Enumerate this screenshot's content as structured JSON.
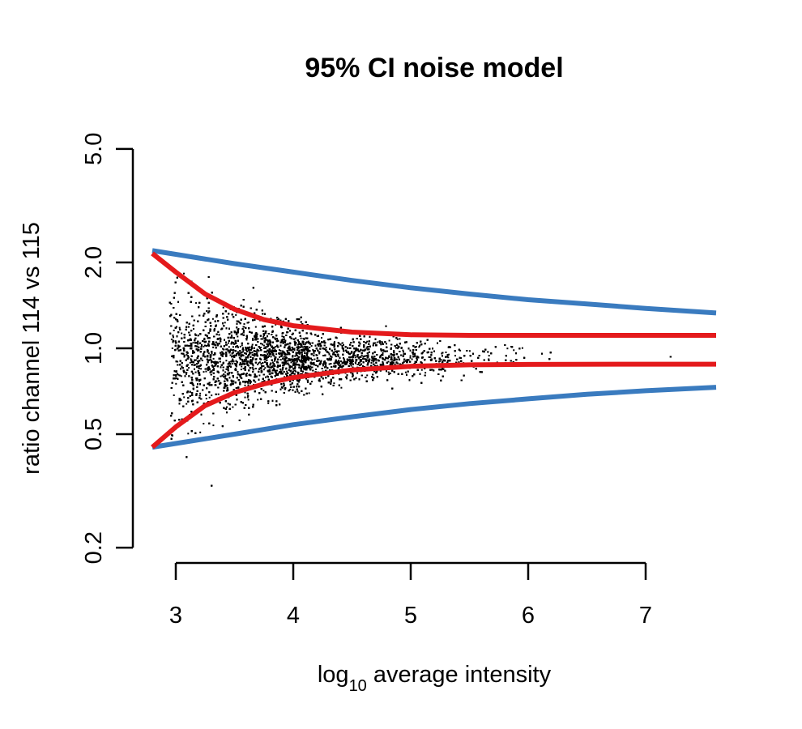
{
  "chart_data": {
    "type": "scatter",
    "title": "95% CI noise model",
    "xlabel": {
      "prefix": "log",
      "subscript": "10",
      "suffix": " average intensity"
    },
    "ylabel": "ratio channel 114 vs 115",
    "xlim": [
      2.8,
      7.6
    ],
    "ylim": [
      0.18,
      5.0
    ],
    "y_scale": "log",
    "x_ticks": [
      3,
      4,
      5,
      6,
      7
    ],
    "x_tick_labels": [
      "3",
      "4",
      "5",
      "6",
      "7"
    ],
    "y_ticks": [
      0.2,
      0.5,
      1.0,
      2.0,
      5.0
    ],
    "y_tick_labels": [
      "0.2",
      "0.5",
      "1.0",
      "2.0",
      "5.0"
    ],
    "grid": false,
    "legend": "none",
    "colors": {
      "points": "#000000",
      "outer_bounds": "#3a7bbf",
      "inner_bounds": "#e41a1c"
    },
    "points": {
      "n": 12000,
      "x_center": 4.0,
      "x_range": [
        2.95,
        7.55
      ],
      "median_ratio": 0.92,
      "note_points_visible": "approx 12000 individual scatter points"
    },
    "series": [
      {
        "curve": "outer-upper",
        "color": "#3a7bbf",
        "x": [
          2.8,
          3.5,
          4.0,
          4.5,
          5.0,
          5.5,
          6.0,
          6.5,
          7.0,
          7.6
        ],
        "y": [
          2.2,
          1.98,
          1.85,
          1.73,
          1.63,
          1.55,
          1.48,
          1.43,
          1.38,
          1.33
        ]
      },
      {
        "curve": "outer-lower",
        "color": "#3a7bbf",
        "x": [
          2.8,
          3.5,
          4.0,
          4.5,
          5.0,
          5.5,
          6.0,
          6.5,
          7.0,
          7.6
        ],
        "y": [
          0.45,
          0.5,
          0.54,
          0.575,
          0.61,
          0.64,
          0.665,
          0.69,
          0.71,
          0.73
        ]
      },
      {
        "curve": "inner-upper",
        "color": "#e41a1c",
        "x": [
          2.8,
          3.0,
          3.25,
          3.5,
          3.75,
          4.0,
          4.5,
          5.0,
          5.5,
          6.0,
          7.0,
          7.6
        ],
        "y": [
          2.15,
          1.85,
          1.55,
          1.37,
          1.26,
          1.2,
          1.14,
          1.115,
          1.11,
          1.11,
          1.11,
          1.11
        ]
      },
      {
        "curve": "inner-lower",
        "color": "#e41a1c",
        "x": [
          2.8,
          3.0,
          3.25,
          3.5,
          3.75,
          4.0,
          4.5,
          5.0,
          5.5,
          6.0,
          7.0,
          7.6
        ],
        "y": [
          0.45,
          0.53,
          0.63,
          0.7,
          0.75,
          0.79,
          0.84,
          0.865,
          0.875,
          0.878,
          0.88,
          0.88
        ]
      }
    ]
  }
}
